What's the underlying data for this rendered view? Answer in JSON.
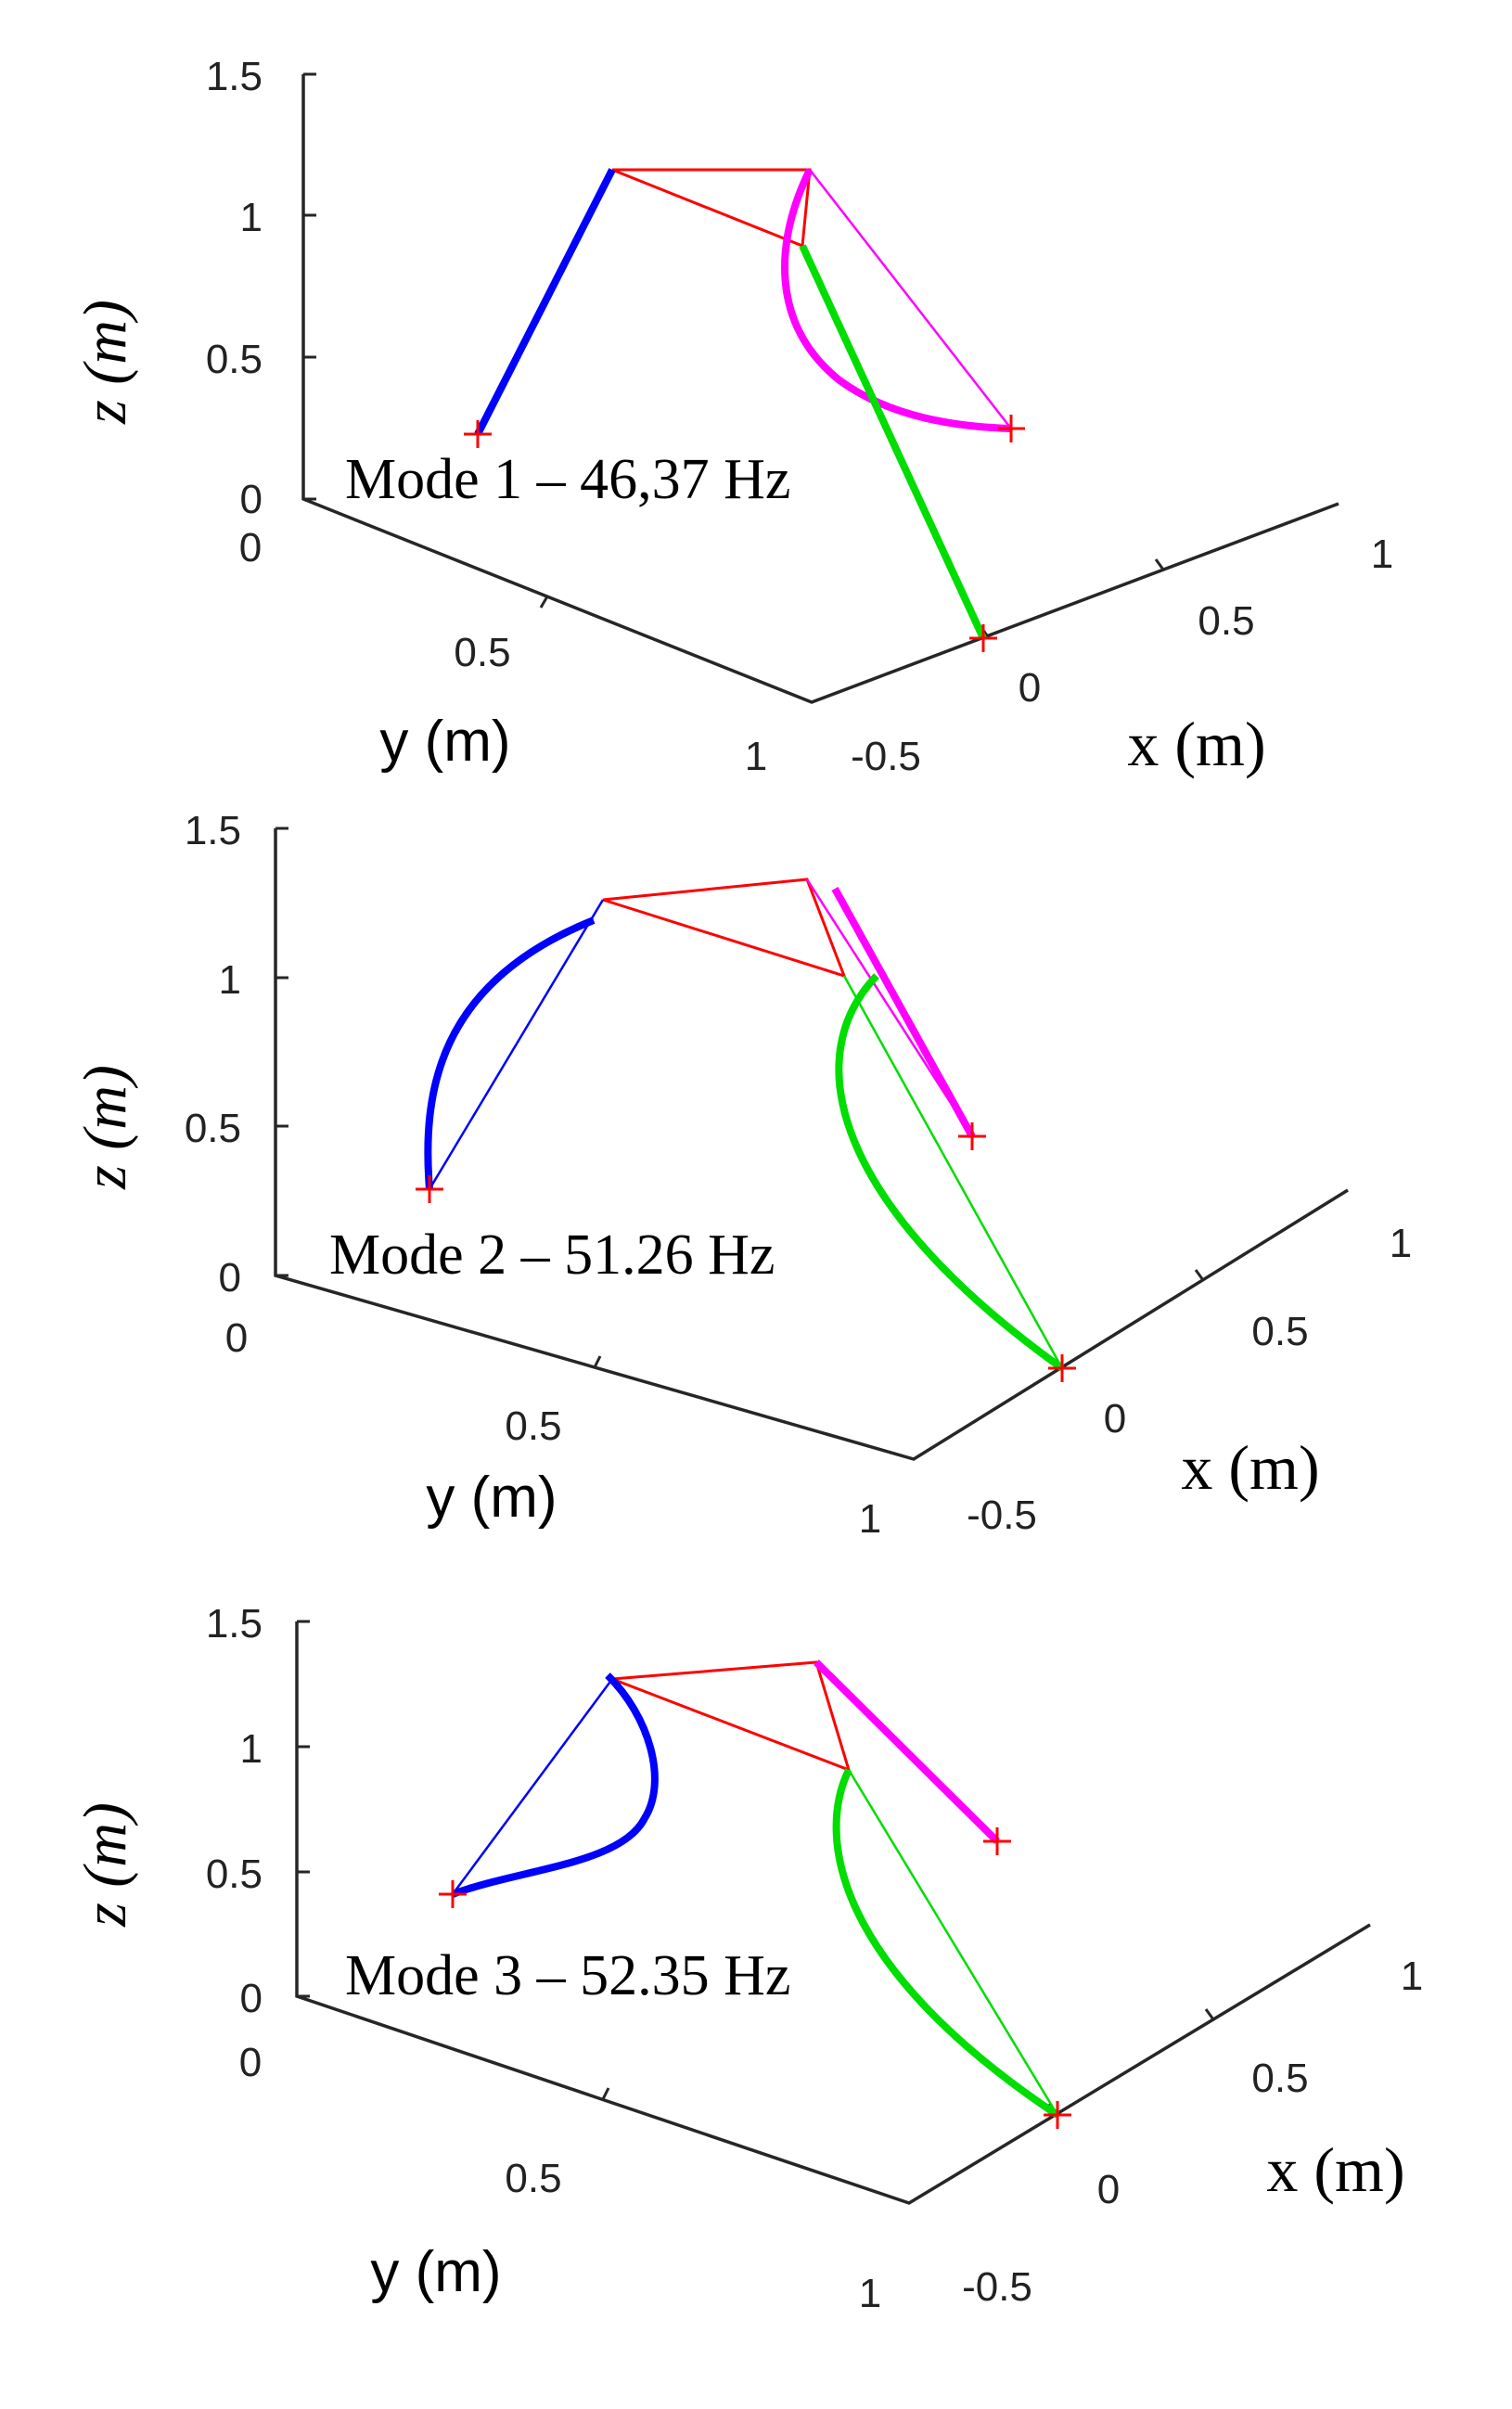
{
  "chart_data": [
    {
      "type": "line",
      "title": "Mode 1 – 46,37 Hz",
      "xlabel": "x (m)",
      "ylabel": "y (m)",
      "zlabel": "z (m)",
      "x_ticks": [
        "-0.5",
        "0",
        "0.5",
        "1"
      ],
      "y_ticks": [
        "0",
        "0.5",
        "1"
      ],
      "z_ticks": [
        "0",
        "0.5",
        "1",
        "1.5"
      ],
      "zlim": [
        0,
        1.5
      ],
      "series": [
        {
          "color": "#0000ff",
          "style": "deformed-blue-leg"
        },
        {
          "color": "#ff00ff",
          "style": "deformed-magenta-leg"
        },
        {
          "color": "#00dd00",
          "style": "deformed-green-leg"
        },
        {
          "color": "#ff0000",
          "style": "platform"
        }
      ]
    },
    {
      "type": "line",
      "title": "Mode 2 – 51.26 Hz",
      "xlabel": "x (m)",
      "ylabel": "y (m)",
      "zlabel": "z (m)",
      "x_ticks": [
        "-0.5",
        "0",
        "0.5",
        "1"
      ],
      "y_ticks": [
        "0",
        "0.5",
        "1"
      ],
      "z_ticks": [
        "0",
        "0.5",
        "1",
        "1.5"
      ],
      "zlim": [
        0,
        1.5
      ],
      "series": [
        {
          "color": "#0000ff",
          "style": "deformed-blue-leg"
        },
        {
          "color": "#ff00ff",
          "style": "deformed-magenta-leg"
        },
        {
          "color": "#00dd00",
          "style": "deformed-green-leg"
        },
        {
          "color": "#ff0000",
          "style": "platform"
        }
      ]
    },
    {
      "type": "line",
      "title": "Mode 3 – 52.35 Hz",
      "xlabel": "x (m)",
      "ylabel": "y (m)",
      "zlabel": "z (m)",
      "x_ticks": [
        "-0.5",
        "0",
        "0.5",
        "1"
      ],
      "y_ticks": [
        "0",
        "0.5",
        "1"
      ],
      "z_ticks": [
        "0",
        "0.5",
        "1",
        "1.5"
      ],
      "zlim": [
        0,
        1.5
      ],
      "series": [
        {
          "color": "#0000ff",
          "style": "deformed-blue-leg"
        },
        {
          "color": "#ff00ff",
          "style": "deformed-magenta-leg"
        },
        {
          "color": "#00dd00",
          "style": "deformed-green-leg"
        },
        {
          "color": "#ff0000",
          "style": "platform"
        }
      ]
    }
  ]
}
